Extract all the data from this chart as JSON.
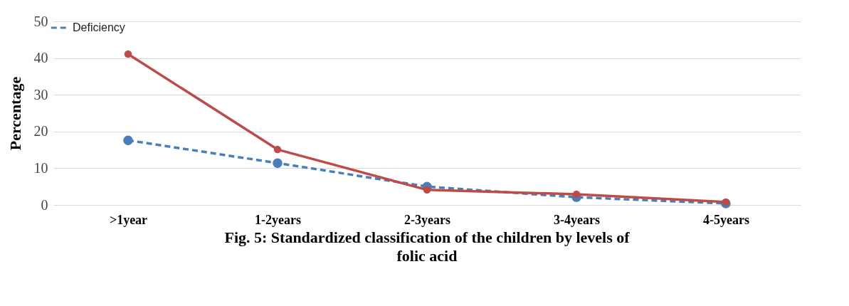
{
  "chart_data": {
    "type": "line",
    "title": "Fig. 5: Standardized classification of the children by levels of folic acid",
    "ylabel": "Percentage",
    "categories": [
      ">1year",
      "1-2years",
      "2-3years",
      "3-4years",
      "4-5years"
    ],
    "series": [
      {
        "name": "Deficiency",
        "color": "#4a7ebb",
        "values": [
          17.6,
          11.4,
          5.0,
          2.1,
          0.4
        ],
        "line_style": "dashed"
      },
      {
        "color": "#be4b48",
        "values": [
          41.1,
          15.1,
          4.1,
          2.9,
          0.8
        ],
        "line_style": "solid"
      }
    ],
    "ylim": [
      0,
      50
    ],
    "yticks": [
      0,
      10,
      20,
      30,
      40,
      50
    ],
    "grid": "y",
    "legend": "top left",
    "marker": "circle"
  }
}
